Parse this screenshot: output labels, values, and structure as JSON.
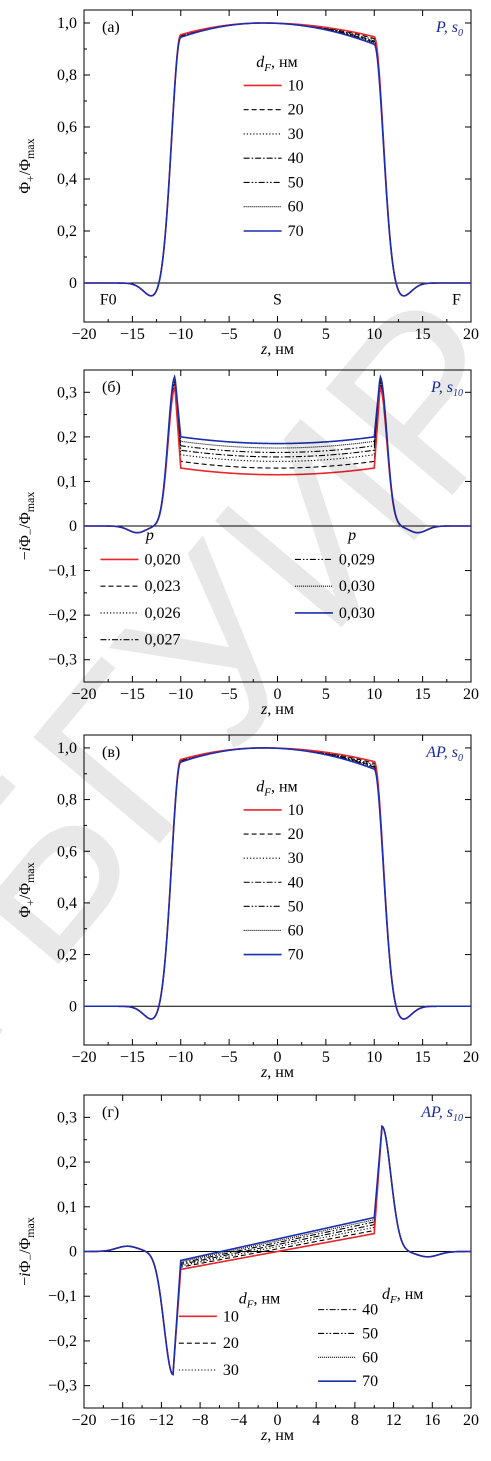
{
  "watermark": "а БГУИР",
  "colors": {
    "red": "#e8262b",
    "blue": "#1a2fb0",
    "black": "#000000",
    "annot": "#1a2a9c"
  },
  "chart_data": [
    {
      "id": "a",
      "type": "line",
      "panel_label": "(а)",
      "annotation": {
        "main": "P, ",
        "sym": "s",
        "sub": "0"
      },
      "xlabel": "z, нм",
      "ylabel": "Φ+/Φmax",
      "xlim": [
        -20,
        20
      ],
      "ylim": [
        -0.15,
        1.05
      ],
      "xticks": [
        "−20",
        "−15",
        "−10",
        "−5",
        "0",
        "5",
        "10",
        "15",
        "20"
      ],
      "xtick_values": [
        -20,
        -15,
        -10,
        -5,
        0,
        5,
        10,
        15,
        20
      ],
      "yticks": [
        "0",
        "0,2",
        "0,4",
        "0,6",
        "0,8",
        "1,0"
      ],
      "ytick_values": [
        0,
        0.2,
        0.4,
        0.6,
        0.8,
        1.0
      ],
      "region_labels": [
        {
          "text": "F0",
          "x": -17.5,
          "y": -0.06
        },
        {
          "text": "S",
          "x": 0,
          "y": -0.06
        },
        {
          "text": "F",
          "x": 18.5,
          "y": -0.06
        }
      ],
      "legend_title": "dF, нм",
      "legend": [
        {
          "label": "10",
          "style": "red"
        },
        {
          "label": "20",
          "style": "dash"
        },
        {
          "label": "30",
          "style": "dot"
        },
        {
          "label": "40",
          "style": "dashdot"
        },
        {
          "label": "50",
          "style": "dashdotdot"
        },
        {
          "label": "60",
          "style": "densedot"
        },
        {
          "label": "70",
          "style": "blue"
        }
      ],
      "series_shape": "symmetric_plateau",
      "series": [
        {
          "label": "10",
          "style": "red",
          "edge_left": 0.955,
          "edge_right": 0.947,
          "center": 1.0
        },
        {
          "label": "20",
          "style": "dash",
          "edge_left": 0.953,
          "edge_right": 0.94,
          "center": 1.0
        },
        {
          "label": "30",
          "style": "dot",
          "edge_left": 0.951,
          "edge_right": 0.935,
          "center": 1.0
        },
        {
          "label": "40",
          "style": "dashdot",
          "edge_left": 0.949,
          "edge_right": 0.93,
          "center": 1.0
        },
        {
          "label": "50",
          "style": "dashdotdot",
          "edge_left": 0.947,
          "edge_right": 0.926,
          "center": 1.0
        },
        {
          "label": "60",
          "style": "densedot",
          "edge_left": 0.946,
          "edge_right": 0.922,
          "center": 1.0
        },
        {
          "label": "70",
          "style": "blue",
          "edge_left": 0.945,
          "edge_right": 0.918,
          "center": 1.0
        }
      ],
      "tail_min": -0.055,
      "tail_min_z": 12.8
    },
    {
      "id": "b",
      "type": "line",
      "panel_label": "(б)",
      "annotation": {
        "main": "P, ",
        "sym": "s",
        "sub": "10"
      },
      "xlabel": "z, нм",
      "ylabel": "−iΦ−/Φmax",
      "xlim": [
        -20,
        20
      ],
      "ylim": [
        -0.35,
        0.35
      ],
      "xticks": [
        "−20",
        "−15",
        "−10",
        "−5",
        "0",
        "5",
        "10",
        "15",
        "20"
      ],
      "xtick_values": [
        -20,
        -15,
        -10,
        -5,
        0,
        5,
        10,
        15,
        20
      ],
      "yticks": [
        "−0,3",
        "−0,2",
        "−0,1",
        "0",
        "0,1",
        "0,2",
        "0,3"
      ],
      "ytick_values": [
        -0.3,
        -0.2,
        -0.1,
        0,
        0.1,
        0.2,
        0.3
      ],
      "legend_title": "p",
      "legend_title2": "p",
      "legend": [
        {
          "label": "0,020",
          "style": "red"
        },
        {
          "label": "0,023",
          "style": "dash"
        },
        {
          "label": "0,026",
          "style": "dot"
        },
        {
          "label": "0,027",
          "style": "dashdot"
        },
        {
          "label": "0,029",
          "style": "dashdotdot"
        },
        {
          "label": "0,030",
          "style": "densedot"
        },
        {
          "label": "0,030",
          "style": "blue"
        }
      ],
      "series_shape": "symmetric_well",
      "series": [
        {
          "label": "0,020",
          "style": "red",
          "edge": 0.13,
          "center": 0.115,
          "peak": 0.31
        },
        {
          "label": "0,023",
          "style": "dash",
          "edge": 0.145,
          "center": 0.13,
          "peak": 0.315
        },
        {
          "label": "0,026",
          "style": "dot",
          "edge": 0.16,
          "center": 0.145,
          "peak": 0.32
        },
        {
          "label": "0,027",
          "style": "dashdot",
          "edge": 0.17,
          "center": 0.155,
          "peak": 0.323
        },
        {
          "label": "0,029",
          "style": "dashdotdot",
          "edge": 0.18,
          "center": 0.165,
          "peak": 0.327
        },
        {
          "label": "0,030",
          "style": "densedot",
          "edge": 0.19,
          "center": 0.175,
          "peak": 0.331
        },
        {
          "label": "0,030",
          "style": "blue",
          "edge": 0.2,
          "center": 0.185,
          "peak": 0.335
        }
      ],
      "tail_min": -0.015,
      "tail_min_z": 14.5
    },
    {
      "id": "c",
      "type": "line",
      "panel_label": "(в)",
      "annotation": {
        "main": "AP, ",
        "sym": "s",
        "sub": "0"
      },
      "xlabel": "z, нм",
      "ylabel": "Φ+/Φmax",
      "xlim": [
        -20,
        20
      ],
      "ylim": [
        -0.15,
        1.05
      ],
      "xticks": [
        "−20",
        "−15",
        "−10",
        "−5",
        "0",
        "5",
        "10",
        "15",
        "20"
      ],
      "xtick_values": [
        -20,
        -15,
        -10,
        -5,
        0,
        5,
        10,
        15,
        20
      ],
      "yticks": [
        "0",
        "0,2",
        "0,4",
        "0,6",
        "0,8",
        "1,0"
      ],
      "ytick_values": [
        0,
        0.2,
        0.4,
        0.6,
        0.8,
        1.0
      ],
      "legend_title": "dF, нм",
      "legend": [
        {
          "label": "10",
          "style": "red"
        },
        {
          "label": "20",
          "style": "dash"
        },
        {
          "label": "30",
          "style": "dot"
        },
        {
          "label": "40",
          "style": "dashdot"
        },
        {
          "label": "50",
          "style": "dashdotdot"
        },
        {
          "label": "60",
          "style": "densedot"
        },
        {
          "label": "70",
          "style": "blue"
        }
      ],
      "series_shape": "symmetric_plateau",
      "series": [
        {
          "label": "10",
          "style": "red",
          "edge_left": 0.955,
          "edge_right": 0.947,
          "center": 1.0
        },
        {
          "label": "20",
          "style": "dash",
          "edge_left": 0.953,
          "edge_right": 0.94,
          "center": 1.0
        },
        {
          "label": "30",
          "style": "dot",
          "edge_left": 0.951,
          "edge_right": 0.935,
          "center": 1.0
        },
        {
          "label": "40",
          "style": "dashdot",
          "edge_left": 0.949,
          "edge_right": 0.93,
          "center": 1.0
        },
        {
          "label": "50",
          "style": "dashdotdot",
          "edge_left": 0.947,
          "edge_right": 0.926,
          "center": 1.0
        },
        {
          "label": "60",
          "style": "densedot",
          "edge_left": 0.946,
          "edge_right": 0.922,
          "center": 1.0
        },
        {
          "label": "70",
          "style": "blue",
          "edge_left": 0.945,
          "edge_right": 0.918,
          "center": 1.0
        }
      ],
      "tail_min": -0.055,
      "tail_min_z": 12.8
    },
    {
      "id": "d",
      "type": "line",
      "panel_label": "(г)",
      "annotation": {
        "main": "AP, ",
        "sym": "s",
        "sub": "10"
      },
      "xlabel": "z, нм",
      "ylabel": "−iΦ−/Φmax",
      "xlim": [
        -20,
        20
      ],
      "ylim": [
        -0.35,
        0.35
      ],
      "xticks": [
        "−20",
        "−16",
        "−12",
        "−8",
        "−4",
        "0",
        "4",
        "8",
        "12",
        "16",
        "20"
      ],
      "xtick_values": [
        -20,
        -16,
        -12,
        -8,
        -4,
        0,
        4,
        8,
        12,
        16,
        20
      ],
      "yticks": [
        "−0,3",
        "−0,2",
        "−0,1",
        "0",
        "0,1",
        "0,2",
        "0,3"
      ],
      "ytick_values": [
        -0.3,
        -0.2,
        -0.1,
        0,
        0.1,
        0.2,
        0.3
      ],
      "legend_title": "dF, нм",
      "legend_title2": "dF, нм",
      "legend": [
        {
          "label": "10",
          "style": "red"
        },
        {
          "label": "20",
          "style": "dash"
        },
        {
          "label": "30",
          "style": "dot"
        },
        {
          "label": "40",
          "style": "dashdot"
        },
        {
          "label": "50",
          "style": "dashdotdot"
        },
        {
          "label": "60",
          "style": "densedot"
        },
        {
          "label": "70",
          "style": "blue"
        }
      ],
      "series_shape": "antisymmetric",
      "series": [
        {
          "label": "10",
          "style": "red",
          "left_edge": -0.04,
          "right_edge": 0.04
        },
        {
          "label": "20",
          "style": "dash",
          "left_edge": -0.035,
          "right_edge": 0.047
        },
        {
          "label": "30",
          "style": "dot",
          "left_edge": -0.032,
          "right_edge": 0.054
        },
        {
          "label": "40",
          "style": "dashdot",
          "left_edge": -0.029,
          "right_edge": 0.06
        },
        {
          "label": "50",
          "style": "dashdotdot",
          "left_edge": -0.026,
          "right_edge": 0.066
        },
        {
          "label": "60",
          "style": "densedot",
          "left_edge": -0.023,
          "right_edge": 0.071
        },
        {
          "label": "70",
          "style": "blue",
          "left_edge": -0.02,
          "right_edge": 0.076
        }
      ],
      "left_min": -0.275,
      "left_min_z": -10.8,
      "right_max": 0.28,
      "right_max_z": 10.8,
      "left_bump": 0.012,
      "left_bump_z": -15.5,
      "right_dip": -0.012,
      "right_dip_z": 15.5
    }
  ]
}
